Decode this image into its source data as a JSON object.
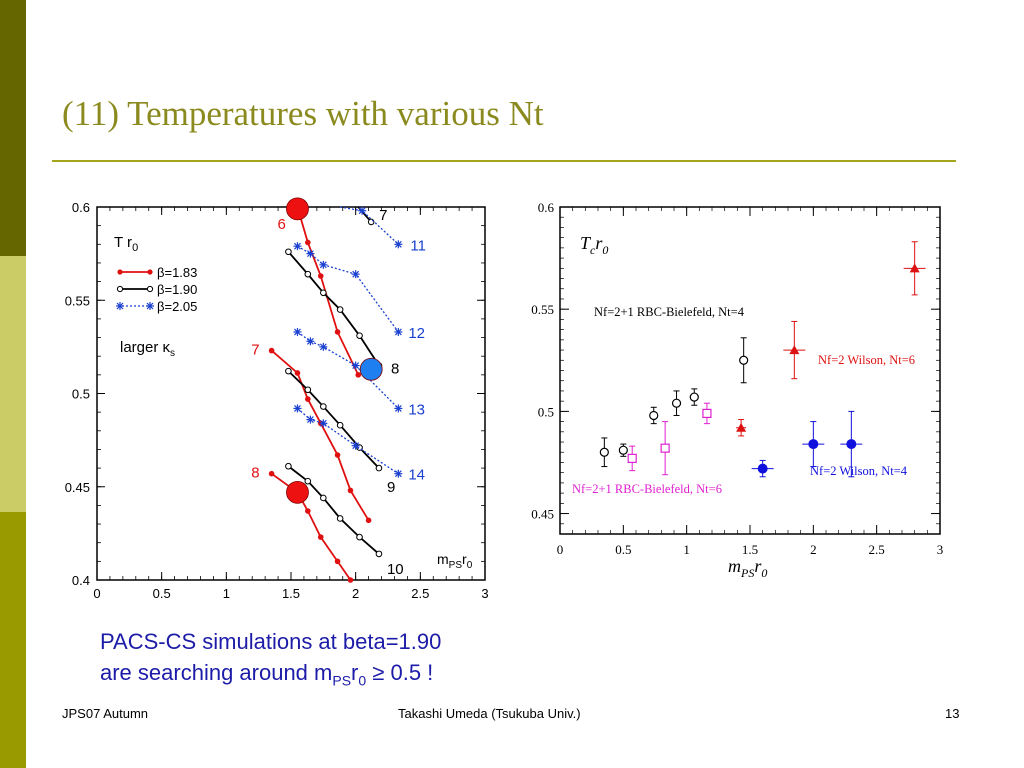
{
  "title": "(11) Temperatures with various Nt",
  "colors": {
    "olive_dark": "#666600",
    "olive_light": "#cccc66",
    "olive_mid": "#999900",
    "title": "#8b8a1f",
    "rule": "#a5a519",
    "note": "#1c1ca8"
  },
  "chart_data": [
    {
      "type": "line",
      "xlabel": "m_PS r_0",
      "ylabel": "T r_0",
      "xlim": [
        0,
        3
      ],
      "ylim": [
        0.4,
        0.6
      ],
      "xticks": [
        "0",
        "0.5",
        "1",
        "1.5",
        "2",
        "2.5",
        "3"
      ],
      "yticks": [
        "0.4",
        "0.45",
        "0.5",
        "0.55",
        "0.6"
      ],
      "legend_title": "T r0",
      "legend": [
        "β=1.83",
        "β=1.90",
        "β=2.05"
      ],
      "legend_note": "larger κs",
      "series": [
        {
          "name": "β=1.83",
          "color": "#e01010",
          "segments": [
            {
              "label": "6",
              "x": [
                1.55,
                1.63,
                1.73,
                1.86,
                2.02
              ],
              "y": [
                0.6,
                0.581,
                0.563,
                0.533,
                0.51
              ]
            },
            {
              "label": "7",
              "x": [
                1.35,
                1.55,
                1.63,
                1.73,
                1.86,
                1.96,
                2.1
              ],
              "y": [
                0.523,
                0.511,
                0.497,
                0.484,
                0.467,
                0.448,
                0.432
              ]
            },
            {
              "label": "8",
              "x": [
                1.35,
                1.55,
                1.63,
                1.73,
                1.86,
                1.96
              ],
              "y": [
                0.457,
                0.447,
                0.437,
                0.423,
                0.41,
                0.4
              ]
            }
          ]
        },
        {
          "name": "β=1.90",
          "color": "#000000",
          "segments": [
            {
              "label": "7",
              "x": [
                2.02,
                2.12
              ],
              "y": [
                0.6,
                0.592
              ]
            },
            {
              "label": "8",
              "x": [
                1.48,
                1.63,
                1.75,
                1.88,
                2.03,
                2.18
              ],
              "y": [
                0.576,
                0.564,
                0.554,
                0.545,
                0.531,
                0.515
              ]
            },
            {
              "label": "9",
              "x": [
                1.48,
                1.63,
                1.75,
                1.88,
                2.03,
                2.18
              ],
              "y": [
                0.512,
                0.502,
                0.493,
                0.483,
                0.471,
                0.46
              ]
            },
            {
              "label": "10",
              "x": [
                1.48,
                1.63,
                1.75,
                1.88,
                2.03,
                2.18
              ],
              "y": [
                0.461,
                0.453,
                0.444,
                0.433,
                0.423,
                0.414
              ]
            }
          ]
        },
        {
          "name": "β=2.05",
          "color": "#1a40d0",
          "segments": [
            {
              "label": "11",
              "x": [
                1.88,
                2.05,
                2.33
              ],
              "y": [
                0.605,
                0.598,
                0.58
              ]
            },
            {
              "label": "12",
              "x": [
                1.55,
                1.65,
                1.75,
                2.0,
                2.33
              ],
              "y": [
                0.579,
                0.575,
                0.569,
                0.564,
                0.533
              ]
            },
            {
              "label": "13",
              "x": [
                1.55,
                1.65,
                1.75,
                2.0,
                2.33
              ],
              "y": [
                0.533,
                0.528,
                0.525,
                0.515,
                0.492
              ]
            },
            {
              "label": "14",
              "x": [
                1.55,
                1.65,
                1.75,
                2.0,
                2.33
              ],
              "y": [
                0.492,
                0.486,
                0.484,
                0.472,
                0.457
              ]
            }
          ]
        }
      ],
      "highlights": [
        {
          "label": "6",
          "x": 1.55,
          "y": 0.599,
          "color": "#ee1111"
        },
        {
          "label": "8",
          "x": 1.55,
          "y": 0.447,
          "color": "#ee1111"
        },
        {
          "label": "8",
          "x": 2.12,
          "y": 0.513,
          "color": "#1e7ff0"
        }
      ]
    },
    {
      "type": "scatter",
      "xlabel": "m_PS r_0",
      "ylabel": "T_c r_0",
      "xlim": [
        0,
        3
      ],
      "ylim": [
        0.44,
        0.6
      ],
      "xticks": [
        "0",
        "0.5",
        "1",
        "1.5",
        "2",
        "2.5",
        "3"
      ],
      "yticks": [
        "0.45",
        "0.5",
        "0.55",
        "0.6"
      ],
      "series": [
        {
          "name": "Nf=2+1 RBC-Bielefeld, Nt=4",
          "color": "#000000",
          "marker": "open-circle",
          "x": [
            0.35,
            0.5,
            0.74,
            0.92,
            1.06,
            1.45
          ],
          "y": [
            0.48,
            0.481,
            0.498,
            0.504,
            0.507,
            0.525
          ],
          "err": [
            0.007,
            0.003,
            0.004,
            0.006,
            0.004,
            0.011
          ]
        },
        {
          "name": "Nf=2+1 RBC-Bielefeld, Nt=6",
          "color": "#e020d0",
          "marker": "open-square",
          "x": [
            0.57,
            0.83,
            1.16
          ],
          "y": [
            0.477,
            0.482,
            0.499
          ],
          "err": [
            0.006,
            0.013,
            0.005
          ]
        },
        {
          "name": "Nf=2 Wilson, Nt=6",
          "color": "#dd1111",
          "marker": "filled-triangle",
          "x": [
            1.43,
            1.85,
            2.8
          ],
          "y": [
            0.492,
            0.53,
            0.57
          ],
          "err": [
            0.004,
            0.014,
            0.013
          ]
        },
        {
          "name": "Nf=2 Wilson, Nt=4",
          "color": "#1111dd",
          "marker": "filled-circle",
          "x": [
            1.6,
            2.0,
            2.3
          ],
          "y": [
            0.472,
            0.484,
            0.484
          ],
          "err": [
            0.004,
            0.011,
            0.016
          ]
        }
      ]
    }
  ],
  "note_line1": "PACS-CS simulations at beta=1.90",
  "note_line2_prefix": "are searching around m",
  "note_sub": "PS",
  "note_r": "r",
  "note_sub0": "0",
  "note_tail": " ≥ 0.5  !",
  "footer": {
    "left": "JPS07 Autumn",
    "center": "Takashi Umeda (Tsukuba Univ.)",
    "page": "13"
  }
}
